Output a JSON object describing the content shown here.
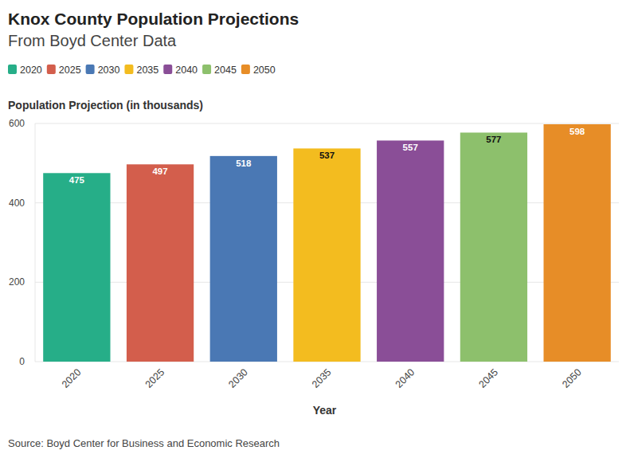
{
  "chart_data": {
    "type": "bar",
    "title": "Knox County Population Projections",
    "subtitle": "From Boyd Center Data",
    "y_label": "Population Projection (in thousands)",
    "x_label": "Year",
    "source": "Source: Boyd Center for Business and Economic Research",
    "categories": [
      "2020",
      "2025",
      "2030",
      "2035",
      "2040",
      "2045",
      "2050"
    ],
    "values": [
      475,
      497,
      518,
      537,
      557,
      577,
      598
    ],
    "colors": [
      "#26ae88",
      "#d35e4c",
      "#4a78b4",
      "#f3bc1f",
      "#8a4e97",
      "#8dc06c",
      "#e78d27"
    ],
    "ylim": [
      0,
      600
    ],
    "yticks": [
      0,
      200,
      400,
      600
    ],
    "grid": true,
    "legend": "top-left",
    "data_labels": true
  }
}
